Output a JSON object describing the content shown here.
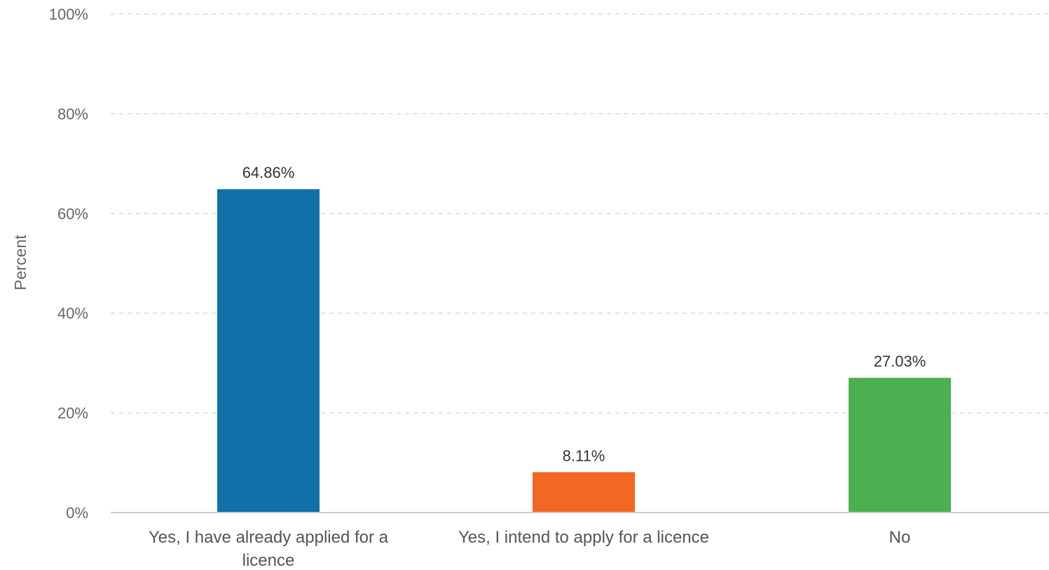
{
  "chart_data": {
    "type": "bar",
    "title": "",
    "xlabel": "",
    "ylabel": "Percent",
    "ylim": [
      0,
      100
    ],
    "yticks": [
      0,
      20,
      40,
      60,
      80,
      100
    ],
    "ytick_labels": [
      "0%",
      "20%",
      "40%",
      "60%",
      "80%",
      "100%"
    ],
    "grid": true,
    "legend": "none",
    "categories": [
      [
        "Yes, I have already applied for a",
        "licence"
      ],
      [
        "Yes, I intend to apply for a licence"
      ],
      [
        "No"
      ]
    ],
    "values": [
      64.86,
      8.11,
      27.03
    ],
    "value_labels": [
      "64.86%",
      "8.11%",
      "27.03%"
    ],
    "colors": [
      "#1170aa",
      "#f26722",
      "#4caf50"
    ],
    "gridline_color": "#d9d9d9",
    "axis_color": "#cccccc"
  }
}
